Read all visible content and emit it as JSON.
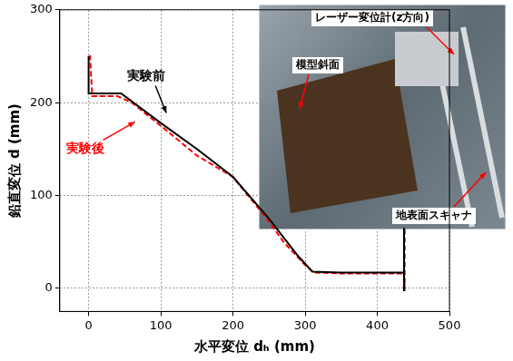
{
  "chart_data": {
    "type": "line",
    "x_label": "水平変位 dₕ (mm)",
    "y_label": "鉛直変位 d (mm)",
    "xlim": [
      -40,
      500
    ],
    "ylim": [
      -25,
      300
    ],
    "xticks": [
      0,
      100,
      200,
      300,
      400,
      500
    ],
    "yticks": [
      0,
      100,
      200,
      300
    ],
    "grid": true,
    "series": [
      {
        "name": "実験前",
        "color": "#000000",
        "line_style": "solid",
        "marker": "none",
        "x": [
          0,
          0,
          5,
          45,
          100,
          150,
          200,
          250,
          290,
          310,
          350,
          400,
          437,
          437,
          437
        ],
        "values": [
          250,
          210,
          210,
          210,
          178,
          150,
          120,
          75,
          35,
          18,
          17,
          17,
          17,
          65,
          -3
        ]
      },
      {
        "name": "実験後",
        "color": "#ff0000",
        "line_style": "dashed",
        "marker": "none",
        "x": [
          0,
          2,
          5,
          40,
          60,
          100,
          150,
          200,
          250,
          270,
          300,
          312,
          350,
          400,
          437,
          438,
          438
        ],
        "values": [
          250,
          250,
          207,
          207,
          200,
          175,
          143,
          120,
          72,
          50,
          25,
          17,
          16,
          16,
          16,
          -3,
          65
        ]
      }
    ],
    "annotations": [
      {
        "text": "実験前",
        "x": 80,
        "y": 228,
        "color": "#000000"
      },
      {
        "text": "実験後",
        "x": -5,
        "y": 150,
        "color": "#ff0000"
      }
    ],
    "photo_labels": [
      "レーザー変位計(z方向)",
      "模型斜面",
      "地表面スキャナ"
    ]
  }
}
